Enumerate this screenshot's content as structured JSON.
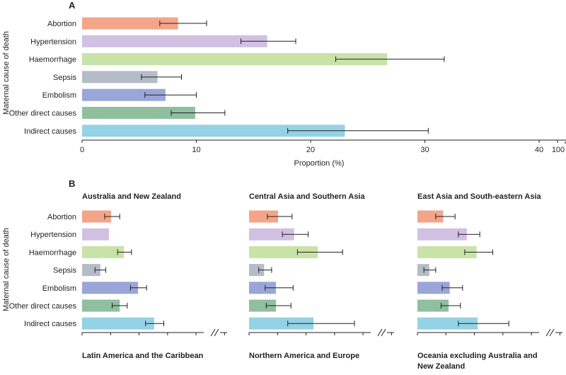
{
  "chart_data": [
    {
      "panel": "A",
      "type": "bar",
      "orientation": "horizontal",
      "categories": [
        "Abortion",
        "Hypertension",
        "Haemorrhage",
        "Sepsis",
        "Embolism",
        "Other direct causes",
        "Indirect causes"
      ],
      "values": [
        8.4,
        16.2,
        26.7,
        6.6,
        7.3,
        9.9,
        23.0
      ],
      "ci_low": [
        6.8,
        13.9,
        22.2,
        5.2,
        5.5,
        7.8,
        18.0
      ],
      "ci_high": [
        10.9,
        18.7,
        31.7,
        8.7,
        10.0,
        12.5,
        30.3
      ],
      "colors": [
        "#f4a589",
        "#d2c0e3",
        "#c9e2a8",
        "#b4bcc8",
        "#9aa6d8",
        "#90bfa0",
        "#94d2e6"
      ],
      "xlabel": "Proportion (%)",
      "ylabel": "Maternal cause of death",
      "xlim": [
        0,
        100
      ],
      "axis_break": [
        42,
        98
      ],
      "x_ticks": [
        "0",
        "10",
        "20",
        "30",
        "40",
        "100"
      ],
      "grid": false
    },
    {
      "panel": "B",
      "type": "bar",
      "orientation": "horizontal",
      "subplots": [
        {
          "title": "Australia and New Zealand",
          "values": [
            2.7,
            2.5,
            3.9,
            1.7,
            5.2,
            3.5,
            6.7
          ],
          "ci_low": [
            2.1,
            null,
            3.3,
            1.2,
            4.5,
            2.8,
            5.9
          ],
          "ci_high": [
            3.5,
            null,
            4.6,
            2.2,
            6.0,
            4.2,
            7.6
          ]
        },
        {
          "title": "Central Asia and Southern Asia",
          "values": [
            2.7,
            4.2,
            6.4,
            1.4,
            2.5,
            2.5,
            6.0
          ],
          "ci_low": [
            1.7,
            3.1,
            4.5,
            0.9,
            1.5,
            1.6,
            3.6
          ],
          "ci_high": [
            4.0,
            5.5,
            8.7,
            2.1,
            4.1,
            3.9,
            9.8
          ]
        },
        {
          "title": "East Asia and South-eastern Asia",
          "values": [
            2.4,
            4.6,
            5.5,
            1.1,
            3.0,
            2.9,
            5.6
          ],
          "ci_low": [
            1.7,
            3.8,
            4.4,
            0.6,
            2.3,
            2.2,
            3.8
          ],
          "ci_high": [
            3.5,
            5.8,
            7.0,
            1.7,
            4.2,
            4.0,
            8.5
          ]
        }
      ],
      "categories": [
        "Abortion",
        "Hypertension",
        "Haemorrhage",
        "Sepsis",
        "Embolism",
        "Other direct causes",
        "Indirect causes"
      ],
      "ylabel": "Maternal cause of death",
      "colors": [
        "#f4a589",
        "#d2c0e3",
        "#c9e2a8",
        "#b4bcc8",
        "#9aa6d8",
        "#90bfa0",
        "#94d2e6"
      ],
      "next_row_titles": [
        "Latin America and the Caribbean",
        "Northern America and Europe",
        "Oceania excluding Australia and New Zealand"
      ]
    }
  ]
}
